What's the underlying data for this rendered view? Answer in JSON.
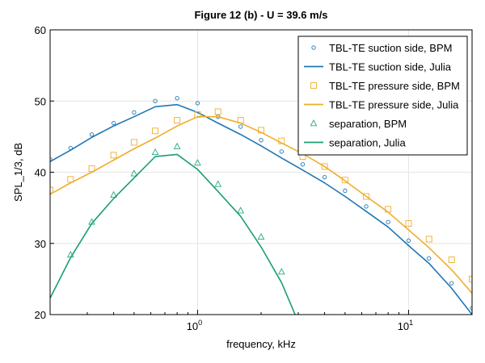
{
  "chart_data": {
    "type": "line",
    "title": "Figure 12 (b) - U = 39.6 m/s",
    "xlabel": "frequency, kHz",
    "ylabel": "SPL_1/3, dB",
    "xscale": "log",
    "xlim": [
      0.2,
      20
    ],
    "ylim": [
      20,
      60
    ],
    "xticks": [
      {
        "value": 1,
        "base": "10",
        "exp": "0"
      },
      {
        "value": 10,
        "base": "10",
        "exp": "1"
      }
    ],
    "yticks": [
      20,
      30,
      40,
      50,
      60
    ],
    "grid": true,
    "legend_position": "top-right",
    "series": [
      {
        "name": "TBL-TE suction side, BPM",
        "kind": "markers",
        "marker": "circle",
        "color": "#1f77b4",
        "x": [
          0.2,
          0.25,
          0.315,
          0.4,
          0.5,
          0.63,
          0.8,
          1.0,
          1.25,
          1.6,
          2.0,
          2.5,
          3.15,
          4.0,
          5.0,
          6.3,
          8.0,
          10.0,
          12.5,
          16.0,
          20.0
        ],
        "y": [
          41.8,
          43.4,
          45.3,
          46.9,
          48.4,
          50.0,
          50.4,
          49.7,
          47.8,
          46.4,
          44.5,
          42.9,
          41.1,
          39.3,
          37.4,
          35.2,
          33.0,
          30.4,
          27.9,
          24.4,
          20.9
        ]
      },
      {
        "name": "TBL-TE suction side, Julia",
        "kind": "line",
        "color": "#1f77b4",
        "x": [
          0.2,
          0.25,
          0.315,
          0.4,
          0.5,
          0.63,
          0.8,
          1.0,
          1.25,
          1.6,
          2.0,
          2.5,
          3.15,
          4.0,
          5.0,
          6.3,
          8.0,
          10.0,
          12.5,
          16.0,
          20.0
        ],
        "y": [
          41.5,
          43.1,
          44.9,
          46.5,
          47.8,
          49.2,
          49.5,
          48.4,
          46.9,
          45.3,
          43.7,
          42.0,
          40.3,
          38.5,
          36.6,
          34.5,
          32.3,
          29.7,
          27.2,
          23.7,
          20.0
        ]
      },
      {
        "name": "TBL-TE pressure side, BPM",
        "kind": "markers",
        "marker": "square",
        "color": "#f0ad2a",
        "x": [
          0.2,
          0.25,
          0.315,
          0.4,
          0.5,
          0.63,
          0.8,
          1.0,
          1.25,
          1.6,
          2.0,
          2.5,
          3.15,
          4.0,
          5.0,
          6.3,
          8.0,
          10.0,
          12.5,
          16.0,
          20.0
        ],
        "y": [
          37.5,
          39.0,
          40.5,
          42.4,
          44.2,
          45.8,
          47.3,
          48.1,
          48.5,
          47.3,
          45.9,
          44.4,
          42.2,
          40.8,
          38.9,
          36.6,
          34.8,
          32.8,
          30.6,
          27.7,
          25.0
        ]
      },
      {
        "name": "TBL-TE pressure side, Julia",
        "kind": "line",
        "color": "#f0ad2a",
        "x": [
          0.2,
          0.25,
          0.315,
          0.4,
          0.5,
          0.63,
          0.8,
          1.0,
          1.25,
          1.6,
          2.0,
          2.5,
          3.15,
          4.0,
          5.0,
          6.3,
          8.0,
          10.0,
          12.5,
          16.0,
          20.0
        ],
        "y": [
          36.9,
          38.5,
          40.0,
          41.7,
          43.3,
          44.8,
          46.5,
          47.8,
          47.8,
          46.9,
          45.6,
          44.1,
          42.6,
          40.8,
          38.8,
          36.6,
          34.4,
          31.9,
          29.4,
          26.3,
          23.0
        ]
      },
      {
        "name": "separation, BPM",
        "kind": "markers",
        "marker": "triangle",
        "color": "#2aa889",
        "x": [
          0.25,
          0.315,
          0.4,
          0.5,
          0.63,
          0.8,
          1.0,
          1.25,
          1.6,
          2.0,
          2.5
        ],
        "y": [
          28.4,
          33.0,
          36.8,
          39.8,
          42.8,
          43.6,
          41.3,
          38.3,
          34.6,
          30.9,
          26.0
        ]
      },
      {
        "name": "separation, Julia",
        "kind": "line",
        "color": "#1a9e74",
        "x": [
          0.2,
          0.25,
          0.315,
          0.4,
          0.5,
          0.63,
          0.8,
          1.0,
          1.25,
          1.6,
          2.0,
          2.5,
          2.9
        ],
        "y": [
          22.3,
          28.0,
          32.8,
          36.3,
          39.2,
          42.2,
          42.5,
          40.4,
          37.3,
          33.8,
          29.5,
          24.5,
          20.0
        ]
      }
    ]
  }
}
